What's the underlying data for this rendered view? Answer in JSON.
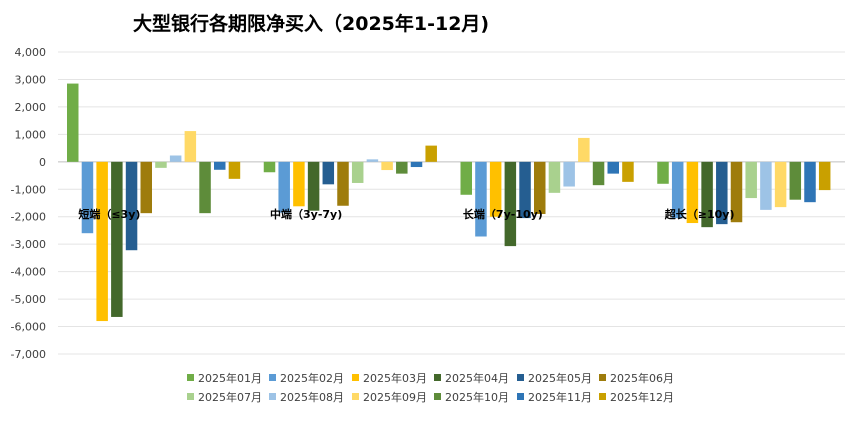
{
  "chart_data": {
    "type": "bar",
    "title": "大型银行各期限净买入（2025年1-12月)",
    "xlabel": "",
    "ylabel": "",
    "ylim": [
      -7000,
      4000
    ],
    "yticks": [
      "4,000",
      "3,000",
      "2,000",
      "1,000",
      "0",
      "-1,000",
      "-2,000",
      "-3,000",
      "-4,000",
      "-5,000",
      "-6,000",
      "-7,000"
    ],
    "ytick_values": [
      4000,
      3000,
      2000,
      1000,
      0,
      -1000,
      -2000,
      -3000,
      -4000,
      -5000,
      -6000,
      -7000
    ],
    "grid": true,
    "legend_position": "bottom",
    "categories": [
      "短端（≤3y)",
      "中端（3y-7y)",
      "长端（7y-10y)",
      "超长（≥10y)"
    ],
    "series": [
      {
        "name": "2025年01月",
        "color": "#70AD47",
        "values": [
          2850,
          -380,
          -1200,
          -800
        ]
      },
      {
        "name": "2025年02月",
        "color": "#5B9BD5",
        "values": [
          -2600,
          -1850,
          -2720,
          -2050
        ]
      },
      {
        "name": "2025年03月",
        "color": "#FFC000",
        "values": [
          -5800,
          -1620,
          -2000,
          -2230
        ]
      },
      {
        "name": "2025年04月",
        "color": "#43682B",
        "values": [
          -5650,
          -1780,
          -3070,
          -2380
        ]
      },
      {
        "name": "2025年05月",
        "color": "#255E91",
        "values": [
          -3220,
          -820,
          -2050,
          -2270
        ]
      },
      {
        "name": "2025年06月",
        "color": "#9E7C0C",
        "values": [
          -1870,
          -1600,
          -1900,
          -2200
        ]
      },
      {
        "name": "2025年07月",
        "color": "#A9D18E",
        "values": [
          -220,
          -770,
          -1130,
          -1320
        ]
      },
      {
        "name": "2025年08月",
        "color": "#9DC3E6",
        "values": [
          230,
          90,
          -900,
          -1750
        ]
      },
      {
        "name": "2025年09月",
        "color": "#FFD966",
        "values": [
          1120,
          -300,
          870,
          -1650
        ]
      },
      {
        "name": "2025年10月",
        "color": "#5E8C3A",
        "values": [
          -1870,
          -430,
          -850,
          -1380
        ]
      },
      {
        "name": "2025年11月",
        "color": "#2E75B6",
        "values": [
          -290,
          -190,
          -430,
          -1470
        ]
      },
      {
        "name": "2025年12月",
        "color": "#C9A000",
        "values": [
          -620,
          590,
          -730,
          -1030
        ]
      }
    ]
  }
}
